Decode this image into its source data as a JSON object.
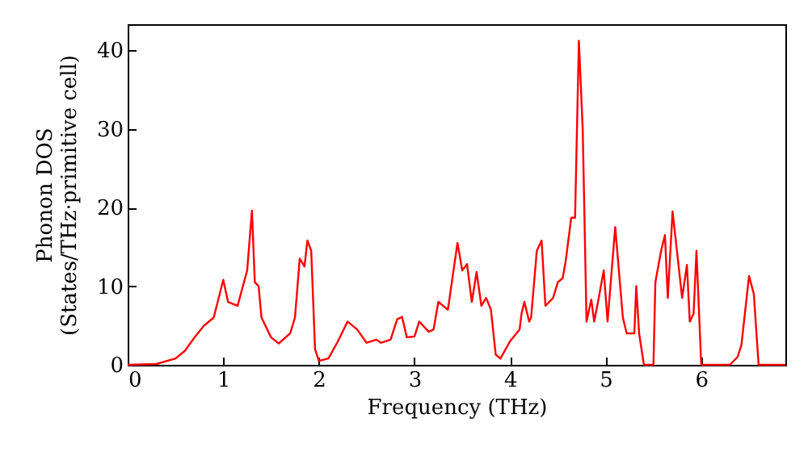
{
  "chart_data": {
    "type": "line",
    "xlabel": "Frequency (THz)",
    "ylabel": "Phonon DOS\n(States/THz·primitive cell)",
    "xlim": [
      0,
      6.88
    ],
    "xticks": [
      0,
      1,
      2,
      3,
      4,
      5,
      6
    ],
    "ylim": [
      0,
      43.3
    ],
    "yticks": [
      0,
      10,
      20,
      30,
      40
    ],
    "grid": false,
    "marker": "none",
    "line_style": "solid",
    "series": [
      {
        "color": "#ff0000",
        "x": [
          0,
          0.3,
          0.5,
          0.6,
          0.7,
          0.8,
          0.9,
          1.0,
          1.05,
          1.15,
          1.25,
          1.3,
          1.33,
          1.37,
          1.4,
          1.5,
          1.58,
          1.7,
          1.75,
          1.8,
          1.85,
          1.88,
          1.92,
          1.96,
          2.0,
          2.1,
          2.2,
          2.3,
          2.4,
          2.5,
          2.6,
          2.65,
          2.75,
          2.82,
          2.87,
          2.92,
          3.0,
          3.05,
          3.15,
          3.2,
          3.25,
          3.3,
          3.35,
          3.45,
          3.5,
          3.55,
          3.6,
          3.65,
          3.7,
          3.75,
          3.8,
          3.85,
          3.9,
          4.0,
          4.1,
          4.12,
          4.15,
          4.2,
          4.22,
          4.28,
          4.33,
          4.37,
          4.45,
          4.5,
          4.55,
          4.58,
          4.64,
          4.68,
          4.72,
          4.76,
          4.8,
          4.85,
          4.88,
          4.92,
          4.98,
          5.02,
          5.1,
          5.18,
          5.22,
          5.3,
          5.32,
          5.35,
          5.4,
          5.5,
          5.52,
          5.58,
          5.62,
          5.65,
          5.7,
          5.8,
          5.85,
          5.88,
          5.92,
          5.95,
          6.0,
          6.3,
          6.38,
          6.42,
          6.5,
          6.55,
          6.6,
          6.88
        ],
        "values": [
          0,
          0.1,
          0.8,
          1.8,
          3.5,
          5,
          6,
          10.8,
          8,
          7.5,
          12,
          19.6,
          10.5,
          10,
          6,
          3.5,
          2.7,
          4,
          6,
          13.5,
          12.5,
          15.8,
          14.5,
          2,
          0.5,
          0.8,
          3,
          5.5,
          4.5,
          2.8,
          3.2,
          2.8,
          3.2,
          5.8,
          6.1,
          3.5,
          3.6,
          5.5,
          4.2,
          4.5,
          8,
          7.5,
          7,
          15.5,
          12,
          12.8,
          8,
          11.8,
          7.5,
          8.5,
          7,
          1.3,
          0.8,
          3,
          4.5,
          6.5,
          8,
          5.5,
          6,
          14.5,
          15.8,
          7.5,
          8.5,
          10.5,
          11,
          13,
          18.7,
          18.7,
          41.2,
          30,
          5.5,
          8.3,
          5.5,
          8,
          12,
          5.5,
          17.5,
          6,
          4,
          4,
          10,
          4,
          0,
          0,
          10.5,
          14.5,
          16.5,
          8.5,
          19.5,
          8.5,
          12.7,
          5.5,
          6.5,
          14.5,
          0,
          0,
          1,
          2.5,
          11.3,
          9,
          0,
          0
        ]
      }
    ]
  }
}
